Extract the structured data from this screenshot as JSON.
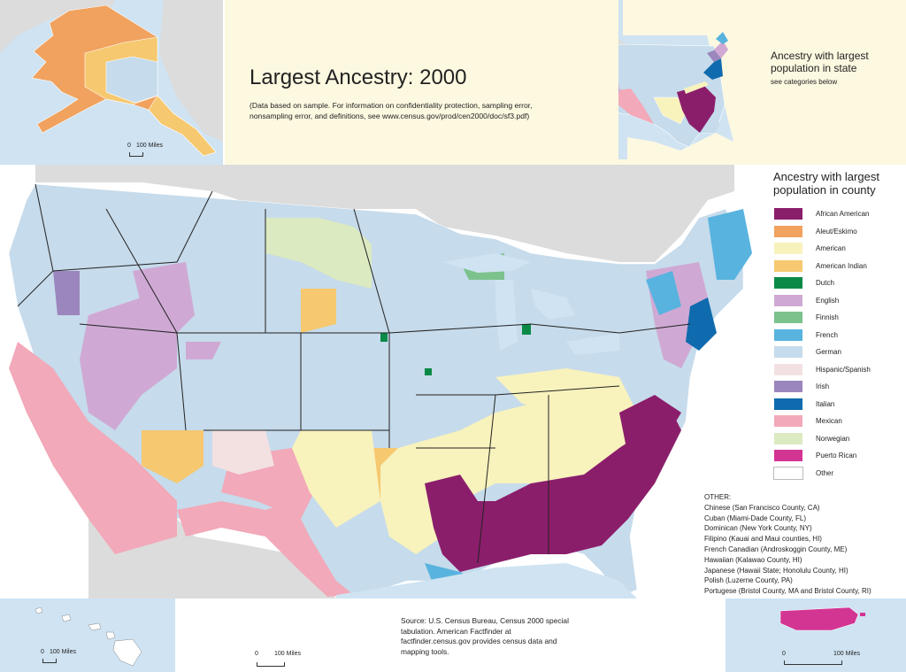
{
  "title": "Largest Ancestry: 2000",
  "subtitle": "(Data based on sample. For information on confidentiality protection, sampling error, nonsampling error, and definitions, see www.census.gov/prod/cen2000/doc/sf3.pdf)",
  "state_legend": {
    "title": "Ancestry with largest population in state",
    "note": "see categories below"
  },
  "county_legend": {
    "title": "Ancestry with largest population in county",
    "items": [
      {
        "label": "African American",
        "color": "#8b1e6b"
      },
      {
        "label": "Aleut/Eskimo",
        "color": "#f0a25e"
      },
      {
        "label": "American",
        "color": "#f8f2bd"
      },
      {
        "label": "American Indian",
        "color": "#f6c86f"
      },
      {
        "label": "Dutch",
        "color": "#0b8a47"
      },
      {
        "label": "English",
        "color": "#cfa9d4"
      },
      {
        "label": "Finnish",
        "color": "#7cc28c"
      },
      {
        "label": "French",
        "color": "#58b3df"
      },
      {
        "label": "German",
        "color": "#c6dbeb"
      },
      {
        "label": "Hispanic/Spanish",
        "color": "#f3e1e1"
      },
      {
        "label": "Irish",
        "color": "#9b86bd"
      },
      {
        "label": "Italian",
        "color": "#0f6bad"
      },
      {
        "label": "Mexican",
        "color": "#f2a9b9"
      },
      {
        "label": "Norwegian",
        "color": "#dbeac0"
      },
      {
        "label": "Puerto Rican",
        "color": "#d33593"
      },
      {
        "label": "Other",
        "color": "#ffffff"
      }
    ]
  },
  "other": {
    "heading": "OTHER:",
    "lines": [
      "Chinese (San Francisco County, CA)",
      "Cuban (Miami-Dade County, FL)",
      "Dominican (New York County, NY)",
      "Filipino (Kauai and Maui counties, HI)",
      "French Canadian (Androskoggin County, ME)",
      "Hawaiian (Kalawao County, HI)",
      "Japanese (Hawaii State; Honolulu County, HI)",
      "Polish (Luzerne County, PA)",
      "Portugese (Bristol County, MA and Bristol County, RI)"
    ]
  },
  "source": "Source: U.S. Census Bureau, Census 2000 special tabulation. American Factfinder at factfinder.census.gov provides census data and mapping tools.",
  "scales": {
    "zero": "0",
    "miles": "100 Miles"
  }
}
